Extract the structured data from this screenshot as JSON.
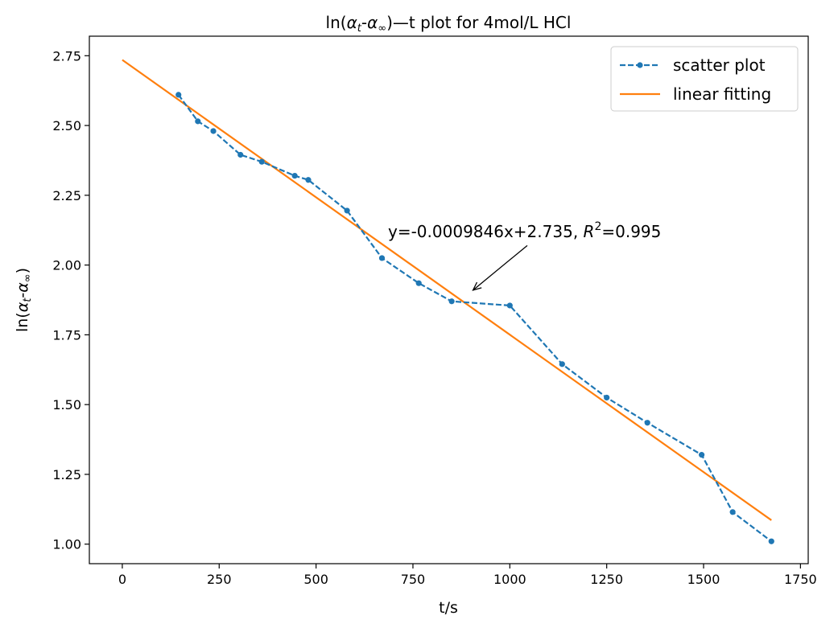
{
  "chart_data": {
    "type": "line",
    "title": "ln(αt-α∞)—t plot for 4mol/L HCl",
    "xlabel": "t/s",
    "ylabel": "ln(αt-α∞)",
    "xlim": [
      -85,
      1770
    ],
    "ylim": [
      0.93,
      2.82
    ],
    "xticks": [
      0,
      250,
      500,
      750,
      1000,
      1250,
      1500,
      1750
    ],
    "yticks": [
      1.0,
      1.25,
      1.5,
      1.75,
      2.0,
      2.25,
      2.5,
      2.75
    ],
    "grid": false,
    "legend_position": "top-right",
    "series": [
      {
        "name": "scatter plot",
        "style": "dashed-markers",
        "color": "#1f77b4",
        "x": [
          145,
          195,
          235,
          305,
          360,
          445,
          480,
          580,
          670,
          765,
          850,
          1000,
          1135,
          1250,
          1355,
          1495,
          1575,
          1675
        ],
        "y": [
          2.61,
          2.515,
          2.48,
          2.395,
          2.37,
          2.32,
          2.305,
          2.195,
          2.025,
          1.935,
          1.87,
          1.855,
          1.645,
          1.525,
          1.435,
          1.32,
          1.115,
          1.01
        ]
      },
      {
        "name": "linear fitting",
        "style": "solid",
        "color": "#ff7f0e",
        "slope": -0.0009846,
        "intercept": 2.735,
        "x_range": [
          0,
          1675
        ]
      }
    ],
    "annotation": {
      "text_prefix": "y=-0.0009846x+2.735, ",
      "r_symbol": "R",
      "r_exponent": "2",
      "text_suffix": "=0.995",
      "point": [
        905,
        1.91
      ],
      "text_anchor": [
        1045,
        2.07
      ]
    }
  }
}
